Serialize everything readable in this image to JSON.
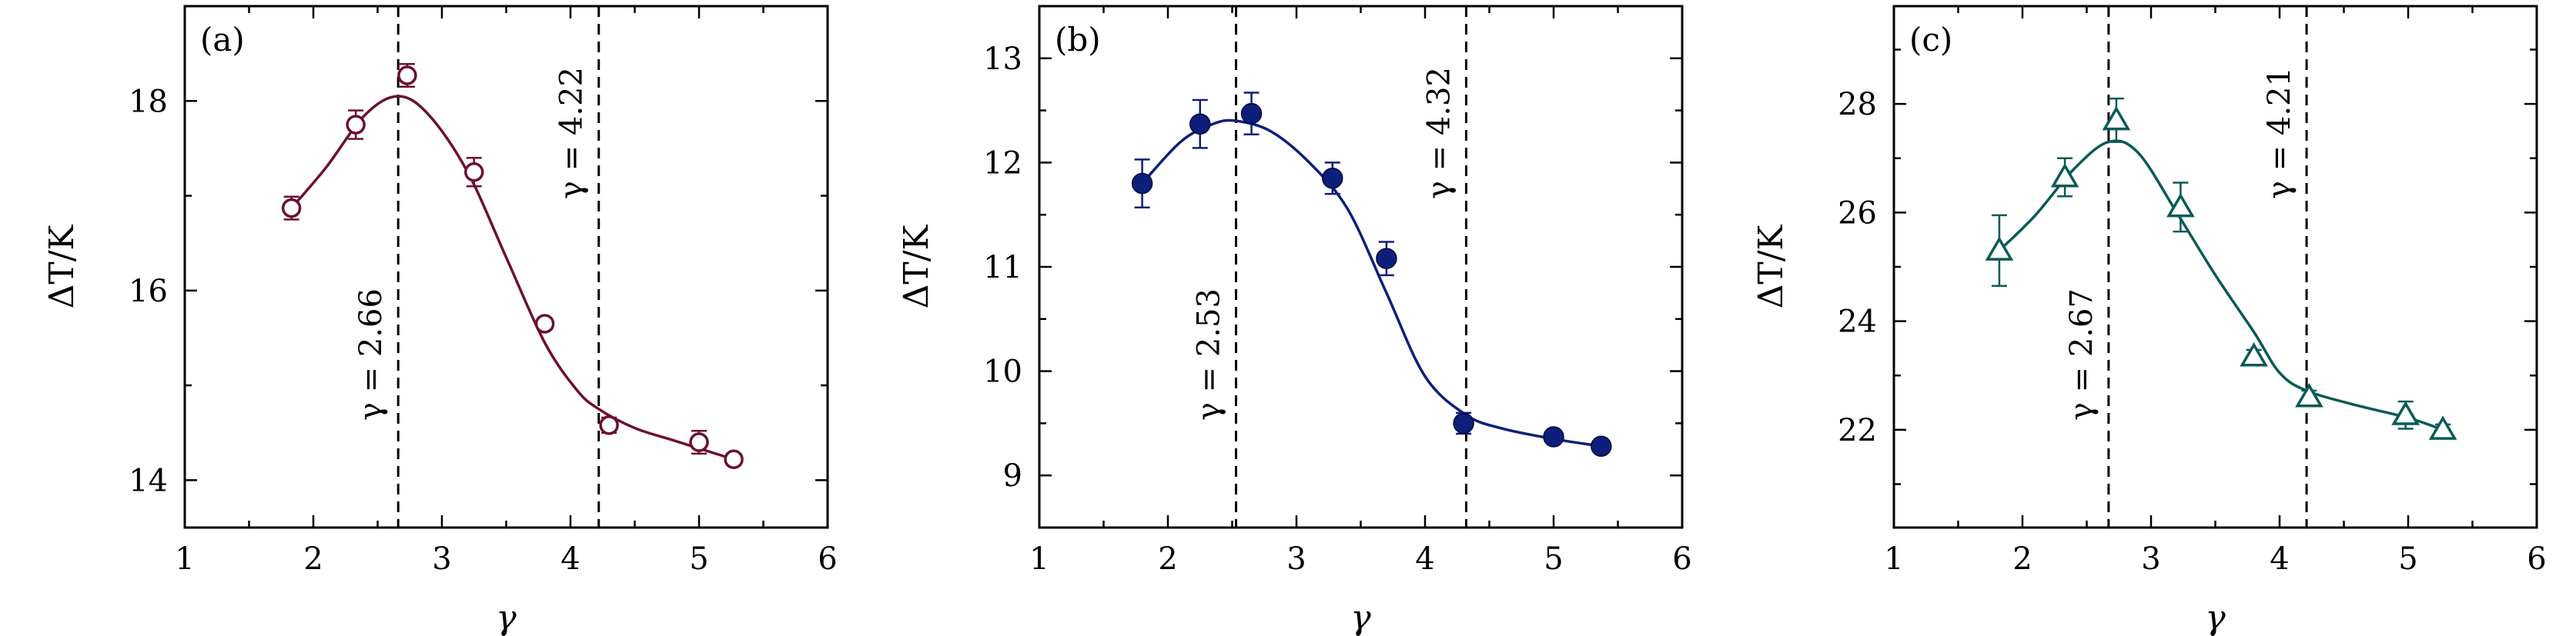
{
  "chart_data": [
    {
      "type": "scatter",
      "panel_label": "(a)",
      "xlabel": "γ",
      "ylabel": "ΔT/K",
      "xlim": [
        1,
        6
      ],
      "ylim": [
        13.5,
        19.0
      ],
      "xticks": [
        1,
        2,
        3,
        4,
        5,
        6
      ],
      "yticks": [
        14,
        16,
        18
      ],
      "color": "#6b1035",
      "marker": "open-circle",
      "series": [
        {
          "x": [
            1.83,
            2.33,
            2.73,
            3.25,
            3.8,
            4.3,
            5.0,
            5.27
          ],
          "y": [
            16.87,
            17.75,
            18.27,
            17.25,
            15.65,
            14.58,
            14.4,
            14.22
          ],
          "err": [
            0.12,
            0.15,
            0.12,
            0.15,
            0.06,
            0.08,
            0.12,
            0.06
          ]
        }
      ],
      "fit": {
        "x": [
          1.83,
          2.1,
          2.4,
          2.66,
          2.9,
          3.2,
          3.5,
          3.8,
          4.05,
          4.22,
          4.5,
          4.8,
          5.27
        ],
        "y": [
          16.87,
          17.3,
          17.85,
          18.05,
          17.85,
          17.25,
          16.35,
          15.45,
          14.95,
          14.75,
          14.55,
          14.42,
          14.22
        ]
      },
      "vlines": [
        {
          "x": 2.66,
          "label": "γ = 2.66"
        },
        {
          "x": 4.22,
          "label": "γ = 4.22"
        }
      ]
    },
    {
      "type": "scatter",
      "panel_label": "(b)",
      "xlabel": "γ",
      "ylabel": "ΔT/K",
      "xlim": [
        1,
        6
      ],
      "ylim": [
        8.5,
        13.5
      ],
      "xticks": [
        1,
        2,
        3,
        4,
        5,
        6
      ],
      "yticks": [
        9,
        10,
        11,
        12,
        13
      ],
      "color": "#0d1f7a",
      "marker": "filled-circle",
      "series": [
        {
          "x": [
            1.8,
            2.25,
            2.65,
            3.28,
            3.7,
            4.3,
            5.0,
            5.37
          ],
          "y": [
            11.8,
            12.37,
            12.47,
            11.85,
            11.08,
            9.5,
            9.37,
            9.28
          ],
          "err": [
            0.23,
            0.23,
            0.2,
            0.15,
            0.16,
            0.1,
            0.06,
            0.05
          ]
        }
      ],
      "fit": {
        "x": [
          1.8,
          2.1,
          2.35,
          2.53,
          2.8,
          3.1,
          3.4,
          3.7,
          4.0,
          4.32,
          4.6,
          5.0,
          5.37
        ],
        "y": [
          11.8,
          12.2,
          12.37,
          12.4,
          12.3,
          12.0,
          11.55,
          10.75,
          9.95,
          9.58,
          9.45,
          9.35,
          9.28
        ]
      },
      "vlines": [
        {
          "x": 2.53,
          "label": "γ = 2.53"
        },
        {
          "x": 4.32,
          "label": "γ = 4.32"
        }
      ]
    },
    {
      "type": "scatter",
      "panel_label": "(c)",
      "xlabel": "γ",
      "ylabel": "ΔT/K",
      "xlim": [
        1,
        6
      ],
      "ylim": [
        20.2,
        29.8
      ],
      "xticks": [
        1,
        2,
        3,
        4,
        5,
        6
      ],
      "yticks": [
        22,
        24,
        26,
        28
      ],
      "color": "#0a5a55",
      "marker": "open-triangle",
      "series": [
        {
          "x": [
            1.82,
            2.33,
            2.73,
            3.23,
            3.8,
            4.23,
            4.98,
            5.27
          ],
          "y": [
            25.3,
            26.65,
            27.7,
            26.1,
            23.35,
            22.6,
            22.27,
            22.0
          ],
          "err": [
            0.65,
            0.35,
            0.4,
            0.45,
            0.12,
            0.12,
            0.25,
            0.1
          ]
        }
      ],
      "fit": {
        "x": [
          1.82,
          2.1,
          2.4,
          2.67,
          2.9,
          3.2,
          3.5,
          3.8,
          4.0,
          4.21,
          4.6,
          5.0,
          5.27
        ],
        "y": [
          25.3,
          25.95,
          26.8,
          27.3,
          27.1,
          26.0,
          24.85,
          23.8,
          23.05,
          22.72,
          22.45,
          22.22,
          22.0
        ]
      },
      "vlines": [
        {
          "x": 2.67,
          "label": "γ = 2.67"
        },
        {
          "x": 4.21,
          "label": "γ = 4.21"
        }
      ]
    }
  ]
}
